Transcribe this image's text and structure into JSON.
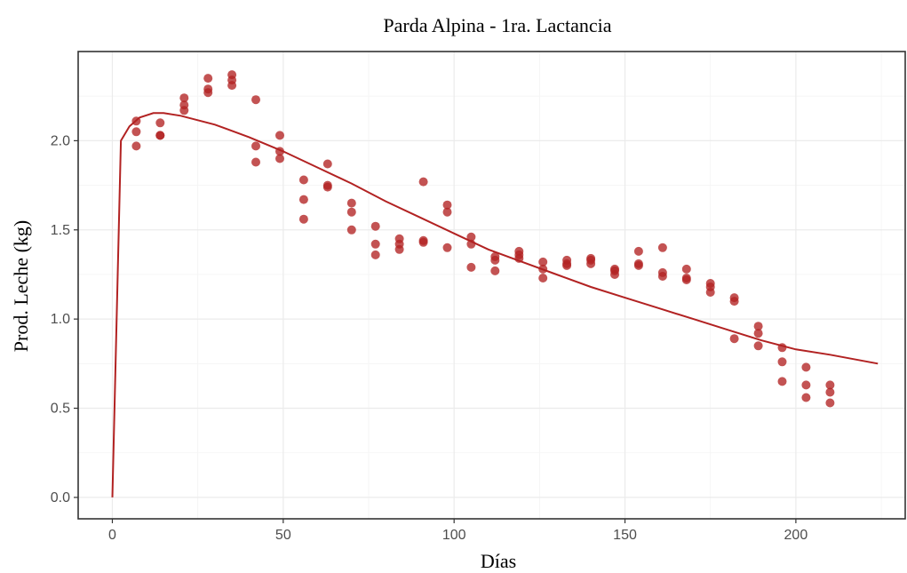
{
  "chart_data": {
    "type": "scatter",
    "title": "Parda Alpina - 1ra. Lactancia",
    "xlabel": "Días",
    "ylabel": "Prod. Leche (kg)",
    "xlim": [
      -10,
      232
    ],
    "ylim": [
      -0.12,
      2.5
    ],
    "x_ticks": [
      0,
      50,
      100,
      150,
      200
    ],
    "y_ticks": [
      0.0,
      0.5,
      1.0,
      1.5,
      2.0
    ],
    "x_tick_labels": [
      "0",
      "50",
      "100",
      "150",
      "200"
    ],
    "y_tick_labels": [
      "0.0",
      "0.5",
      "1.0",
      "1.5",
      "2.0"
    ],
    "grid": true,
    "colors": {
      "points": "#b22222",
      "line": "#b22222"
    },
    "series": [
      {
        "type": "scatter",
        "points": [
          [
            7,
            2.11
          ],
          [
            7,
            2.05
          ],
          [
            7,
            1.97
          ],
          [
            14,
            2.1
          ],
          [
            14,
            2.03
          ],
          [
            14,
            2.03
          ],
          [
            21,
            2.24
          ],
          [
            21,
            2.2
          ],
          [
            21,
            2.17
          ],
          [
            28,
            2.35
          ],
          [
            28,
            2.29
          ],
          [
            28,
            2.27
          ],
          [
            35,
            2.37
          ],
          [
            35,
            2.34
          ],
          [
            35,
            2.31
          ],
          [
            42,
            2.23
          ],
          [
            42,
            1.97
          ],
          [
            42,
            1.88
          ],
          [
            49,
            2.03
          ],
          [
            49,
            1.94
          ],
          [
            49,
            1.9
          ],
          [
            56,
            1.78
          ],
          [
            56,
            1.67
          ],
          [
            56,
            1.56
          ],
          [
            63,
            1.87
          ],
          [
            63,
            1.75
          ],
          [
            63,
            1.74
          ],
          [
            70,
            1.65
          ],
          [
            70,
            1.6
          ],
          [
            70,
            1.5
          ],
          [
            77,
            1.52
          ],
          [
            77,
            1.42
          ],
          [
            77,
            1.36
          ],
          [
            84,
            1.45
          ],
          [
            84,
            1.42
          ],
          [
            84,
            1.39
          ],
          [
            91,
            1.77
          ],
          [
            91,
            1.44
          ],
          [
            91,
            1.43
          ],
          [
            98,
            1.64
          ],
          [
            98,
            1.6
          ],
          [
            98,
            1.4
          ],
          [
            105,
            1.46
          ],
          [
            105,
            1.42
          ],
          [
            105,
            1.29
          ],
          [
            112,
            1.35
          ],
          [
            112,
            1.33
          ],
          [
            112,
            1.27
          ],
          [
            119,
            1.38
          ],
          [
            119,
            1.36
          ],
          [
            119,
            1.34
          ],
          [
            126,
            1.32
          ],
          [
            126,
            1.28
          ],
          [
            126,
            1.23
          ],
          [
            133,
            1.33
          ],
          [
            133,
            1.31
          ],
          [
            133,
            1.3
          ],
          [
            140,
            1.34
          ],
          [
            140,
            1.33
          ],
          [
            140,
            1.31
          ],
          [
            147,
            1.28
          ],
          [
            147,
            1.27
          ],
          [
            147,
            1.25
          ],
          [
            154,
            1.38
          ],
          [
            154,
            1.31
          ],
          [
            154,
            1.3
          ],
          [
            161,
            1.4
          ],
          [
            161,
            1.26
          ],
          [
            161,
            1.24
          ],
          [
            168,
            1.28
          ],
          [
            168,
            1.23
          ],
          [
            168,
            1.22
          ],
          [
            175,
            1.2
          ],
          [
            175,
            1.18
          ],
          [
            175,
            1.15
          ],
          [
            182,
            1.12
          ],
          [
            182,
            1.1
          ],
          [
            182,
            0.89
          ],
          [
            189,
            0.96
          ],
          [
            189,
            0.92
          ],
          [
            189,
            0.85
          ],
          [
            196,
            0.84
          ],
          [
            196,
            0.76
          ],
          [
            196,
            0.65
          ],
          [
            203,
            0.73
          ],
          [
            203,
            0.63
          ],
          [
            203,
            0.56
          ],
          [
            210,
            0.63
          ],
          [
            210,
            0.59
          ],
          [
            210,
            0.53
          ]
        ]
      },
      {
        "type": "line",
        "points": [
          [
            0,
            0.0
          ],
          [
            2.5,
            2.0
          ],
          [
            5,
            2.08
          ],
          [
            8,
            2.13
          ],
          [
            12,
            2.155
          ],
          [
            15,
            2.155
          ],
          [
            20,
            2.14
          ],
          [
            30,
            2.09
          ],
          [
            40,
            2.02
          ],
          [
            50,
            1.94
          ],
          [
            60,
            1.85
          ],
          [
            70,
            1.76
          ],
          [
            80,
            1.66
          ],
          [
            90,
            1.57
          ],
          [
            100,
            1.48
          ],
          [
            110,
            1.39
          ],
          [
            120,
            1.32
          ],
          [
            130,
            1.25
          ],
          [
            140,
            1.18
          ],
          [
            150,
            1.12
          ],
          [
            160,
            1.06
          ],
          [
            170,
            1.0
          ],
          [
            180,
            0.94
          ],
          [
            190,
            0.88
          ],
          [
            200,
            0.83
          ],
          [
            210,
            0.8
          ],
          [
            224,
            0.75
          ]
        ]
      }
    ]
  }
}
